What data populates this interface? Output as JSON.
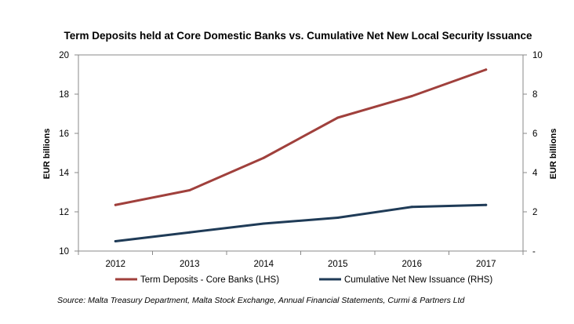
{
  "chart_data": {
    "type": "line",
    "title": "Term Deposits held at Core Domestic Banks vs. Cumulative  Net New Local Security Issuance",
    "categories": [
      "2012",
      "2013",
      "2014",
      "2015",
      "2016",
      "2017"
    ],
    "ylabel_left": "EUR billions",
    "ylabel_right": "EUR billions",
    "ylim_left": [
      10,
      20
    ],
    "ylim_right": [
      0,
      10
    ],
    "yticks_left": [
      "10",
      "12",
      "14",
      "16",
      "18",
      "20"
    ],
    "yticks_right": [
      "-",
      "2",
      "4",
      "6",
      "8",
      "10"
    ],
    "grid": false,
    "legend_position": "bottom",
    "series": [
      {
        "name": "Term Deposits - Core Banks (LHS)",
        "axis": "left",
        "color": "#a0403c",
        "values": [
          12.35,
          13.1,
          14.75,
          16.8,
          17.9,
          19.25
        ]
      },
      {
        "name": "Cumulative Net New Issuance (RHS)",
        "axis": "right",
        "color": "#1f3b57",
        "values": [
          0.5,
          0.95,
          1.4,
          1.7,
          2.25,
          2.35
        ]
      }
    ],
    "source": "Source: Malta Treasury Department, Malta Stock Exchange, Annual Financial Statements, Curmi & Partners Ltd"
  }
}
